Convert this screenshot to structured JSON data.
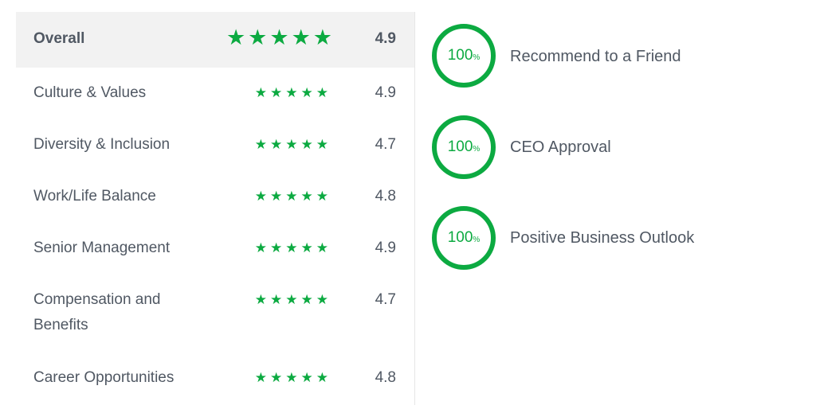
{
  "ratings": [
    {
      "label": "Overall",
      "stars": "★★★★★",
      "value": "4.9"
    },
    {
      "label": "Culture & Values",
      "stars": "★★★★★",
      "value": "4.9"
    },
    {
      "label": "Diversity & Inclusion",
      "stars": "★★★★★",
      "value": "4.7"
    },
    {
      "label": "Work/Life Balance",
      "stars": "★★★★★",
      "value": "4.8"
    },
    {
      "label": "Senior Management",
      "stars": "★★★★★",
      "value": "4.9"
    },
    {
      "label": "Compensation and Benefits",
      "stars": "★★★★★",
      "value": "4.7"
    },
    {
      "label": "Career Opportunities",
      "stars": "★★★★★",
      "value": "4.8"
    }
  ],
  "metrics": [
    {
      "value": "100",
      "unit": "%",
      "label": "Recommend to a Friend"
    },
    {
      "value": "100",
      "unit": "%",
      "label": "CEO Approval"
    },
    {
      "value": "100",
      "unit": "%",
      "label": "Positive Business Outlook"
    }
  ],
  "colors": {
    "accent": "#0caa41",
    "text": "#505863",
    "highlight": "#f2f2f2"
  }
}
